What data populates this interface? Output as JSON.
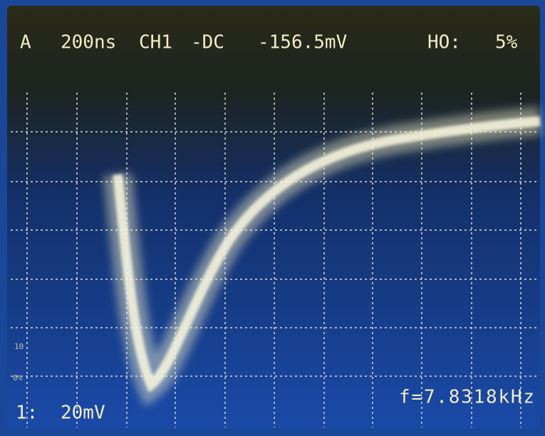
{
  "header": {
    "mode": "A",
    "timebase": "200ns",
    "channel": "CH1",
    "coupling": "-DC",
    "trigger_level": "-156.5mV",
    "holdoff_label": "HO:",
    "holdoff": "5%"
  },
  "footer": {
    "channel": "1:",
    "scale": "20mV",
    "frequency": "f=7.8318kHz"
  },
  "markers": [
    "10",
    "0%"
  ]
}
